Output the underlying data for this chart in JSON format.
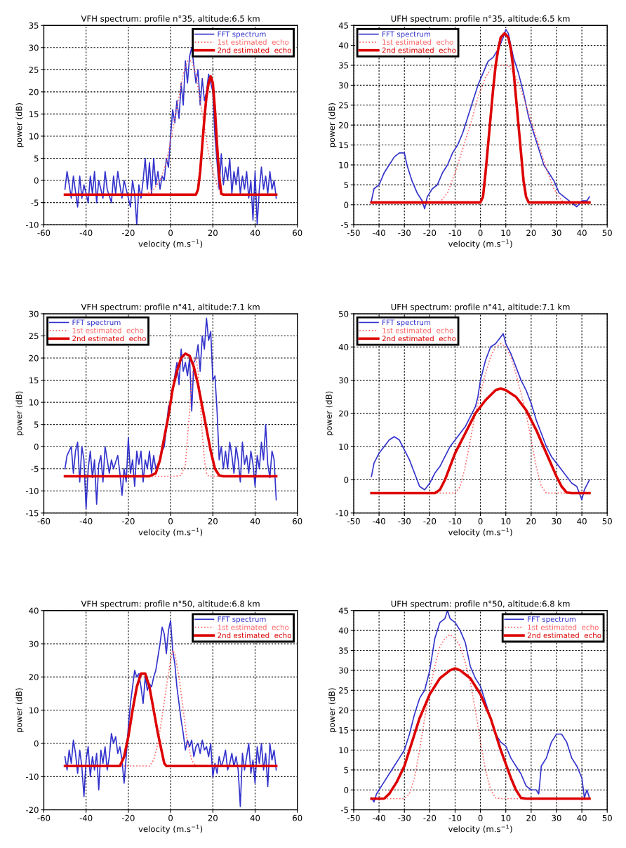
{
  "chart_data": [
    {
      "type": "line",
      "title": "VFH spectrum: profile n°35, altitude:6.5 km",
      "xlabel": "velocity (m.s$^{−1}$)",
      "ylabel": "power (dB)",
      "xlim": [
        -60,
        60
      ],
      "xticks": [
        -60,
        -40,
        -20,
        0,
        20,
        40,
        60
      ],
      "ylim": [
        -10,
        35
      ],
      "yticks": [
        -10,
        -5,
        0,
        5,
        10,
        15,
        20,
        25,
        30,
        35
      ],
      "grid": true,
      "legend": "top right",
      "series": [
        {
          "name": "FFT spectrum",
          "color": "#3333cc",
          "line_style": "solid",
          "x": [
            -50,
            -49,
            -47,
            -46,
            -44,
            -43,
            -42,
            -41,
            -39,
            -38,
            -37,
            -36,
            -35,
            -34,
            -32,
            -31,
            -30,
            -28,
            -27,
            -26,
            -25,
            -23,
            -22,
            -21,
            -19,
            -18,
            -17,
            -16,
            -15,
            -14,
            -13,
            -12,
            -11,
            -10,
            -9,
            -8,
            -7,
            -6,
            -5,
            -4,
            -3,
            -2,
            -1,
            0,
            1,
            2,
            3,
            4,
            5,
            6,
            7,
            8,
            9,
            10,
            11,
            12,
            13,
            14,
            15,
            16,
            17,
            18,
            19,
            20,
            21,
            22,
            23,
            24,
            25,
            26,
            27,
            28,
            29,
            30,
            31,
            32,
            33,
            34,
            35,
            36,
            37,
            38,
            39,
            40,
            41,
            42,
            43,
            44,
            45,
            46,
            47,
            48,
            49,
            50
          ],
          "values": [
            -2,
            2,
            -4,
            1,
            -6,
            1,
            -4,
            -1,
            -5,
            1,
            -3,
            2,
            -5,
            0,
            -4,
            2,
            -2,
            -5,
            1,
            -3,
            2,
            -4,
            0,
            -2,
            -6,
            0,
            -3,
            -10,
            -1,
            -4,
            0,
            5,
            -2,
            4,
            -3,
            5,
            -1,
            2,
            -2,
            1,
            0,
            5,
            3,
            10,
            16,
            13,
            18,
            14,
            22,
            17,
            27,
            22,
            28,
            30,
            26,
            22,
            25,
            17,
            23,
            18,
            20,
            24,
            22,
            20,
            10,
            4,
            -2,
            6,
            -1,
            3,
            0,
            5,
            -3,
            2,
            -1,
            3,
            -3,
            1,
            -2,
            2,
            -4,
            0,
            -9,
            2,
            -10,
            -2,
            3,
            -2,
            1,
            -3,
            2,
            -2,
            0,
            -4
          ]
        },
        {
          "name": "1st estimated  echo",
          "color": "#ff6666",
          "line_style": "dotted",
          "x": [
            -50,
            -12,
            -8,
            -5,
            -2,
            0,
            2,
            4,
            6,
            8,
            10,
            12,
            14,
            16,
            18,
            20,
            22,
            24,
            26,
            50
          ],
          "values": [
            -3.2,
            -3.2,
            -2,
            0,
            4,
            9,
            14,
            19,
            24,
            27,
            27,
            24,
            18,
            12,
            6,
            2,
            -1,
            -3,
            -3.2,
            -3.2
          ]
        },
        {
          "name": "2nd estimated  echo",
          "color": "#dd0000",
          "line_style": "solid",
          "x": [
            -50,
            12,
            13,
            14,
            15,
            16,
            17,
            18,
            19,
            20,
            21,
            22,
            23,
            24,
            25,
            50
          ],
          "values": [
            -3.2,
            -3.2,
            -2,
            2,
            8,
            14,
            19,
            22,
            23.5,
            22,
            16,
            8,
            1,
            -3,
            -3.2,
            -3.2
          ]
        }
      ]
    },
    {
      "type": "line",
      "title": "UFH spectrum: profile n°35, altitude:6.5 km",
      "xlabel": "velocity (m.s$^{−1}$)",
      "ylabel": "power (dB)",
      "xlim": [
        -50,
        50
      ],
      "xticks": [
        -50,
        -40,
        -30,
        -20,
        -10,
        0,
        10,
        20,
        30,
        40,
        50
      ],
      "ylim": [
        -5,
        45
      ],
      "yticks": [
        -5,
        0,
        5,
        10,
        15,
        20,
        25,
        30,
        35,
        40,
        45
      ],
      "grid": true,
      "legend": "top left",
      "series": [
        {
          "name": "FFT spectrum",
          "color": "#3333cc",
          "line_style": "solid",
          "x": [
            -43,
            -42,
            -40,
            -38,
            -36,
            -34,
            -32,
            -30,
            -29,
            -27,
            -25,
            -23,
            -22,
            -21,
            -19,
            -17,
            -15,
            -13,
            -11,
            -9,
            -7,
            -5,
            -3,
            -1,
            1,
            3,
            5,
            7,
            9,
            10,
            11,
            12,
            13,
            15,
            17,
            19,
            21,
            23,
            25,
            27,
            29,
            31,
            33,
            35,
            37,
            38,
            40,
            42,
            43
          ],
          "values": [
            1,
            4,
            5,
            8,
            10,
            12,
            13,
            13,
            10,
            6,
            3,
            1,
            -1,
            2,
            4,
            5,
            8,
            10,
            13,
            15,
            18,
            22,
            26,
            30,
            33,
            36,
            37,
            39,
            42,
            44,
            43,
            40,
            37,
            33,
            28,
            22,
            18,
            14,
            10,
            8,
            6,
            3,
            2,
            1,
            0,
            -0.5,
            1,
            1,
            2
          ]
        },
        {
          "name": "1st estimated  echo",
          "color": "#ff6666",
          "line_style": "dotted",
          "x": [
            -43,
            -16,
            -13,
            -10,
            -7,
            -4,
            -1,
            2,
            5,
            8,
            11,
            14,
            17,
            20,
            23,
            26,
            29,
            32,
            34,
            43
          ],
          "values": [
            0.6,
            0.6,
            3,
            8,
            14,
            20,
            27,
            32,
            35,
            35,
            35,
            32,
            27,
            21,
            15,
            9,
            4,
            1,
            0.6,
            0.6
          ]
        },
        {
          "name": "2nd estimated  echo",
          "color": "#dd0000",
          "line_style": "solid",
          "x": [
            -43,
            0,
            1,
            2,
            3,
            4,
            5,
            6,
            7,
            8,
            9.5,
            11,
            12,
            13,
            14,
            15,
            16,
            17,
            18,
            19,
            43
          ],
          "values": [
            0.6,
            0.6,
            2,
            8,
            15,
            22,
            29,
            35,
            39,
            42,
            43,
            42,
            39,
            34,
            27,
            20,
            13,
            6,
            2,
            0.6,
            0.6
          ]
        }
      ]
    },
    {
      "type": "line",
      "title": "VFH spectrum: profile n°41, altitude:7.1 km",
      "xlabel": "velocity (m.s$^{−1}$)",
      "ylabel": "power (dB)",
      "xlim": [
        -60,
        60
      ],
      "xticks": [
        -60,
        -40,
        -20,
        0,
        20,
        40,
        60
      ],
      "ylim": [
        -15,
        30
      ],
      "yticks": [
        -15,
        -10,
        -5,
        0,
        5,
        10,
        15,
        20,
        25,
        30
      ],
      "grid": true,
      "legend": "top left",
      "series": [
        {
          "name": "FFT spectrum",
          "color": "#3333cc",
          "line_style": "solid",
          "x": [
            -50,
            -49,
            -47,
            -46,
            -45,
            -44,
            -43,
            -42,
            -41,
            -40,
            -39,
            -38,
            -37,
            -36,
            -35,
            -34,
            -33,
            -32,
            -31,
            -29,
            -28,
            -27,
            -25,
            -24,
            -23,
            -22,
            -21,
            -20,
            -19,
            -18,
            -17,
            -16,
            -15,
            -14,
            -13,
            -12,
            -11,
            -10,
            -9,
            -8,
            -7,
            -5,
            -4,
            -3,
            -2,
            -1,
            0,
            1,
            2,
            3,
            4,
            5,
            6,
            7,
            8,
            9,
            10,
            11,
            12,
            13,
            14,
            15,
            16,
            17,
            18,
            19,
            20,
            21,
            22,
            23,
            24,
            25,
            26,
            27,
            28,
            29,
            30,
            31,
            32,
            33,
            34,
            35,
            36,
            37,
            38,
            39,
            40,
            41,
            42,
            43,
            44,
            45,
            46,
            47,
            48,
            49,
            50
          ],
          "values": [
            -5,
            -2,
            0,
            -6,
            -1,
            1,
            -8,
            0,
            -3,
            -14,
            -5,
            -1,
            -7,
            -3,
            -13,
            -4,
            -2,
            -8,
            0,
            -6,
            -3,
            -5,
            -2,
            -6,
            -11,
            -5,
            -8,
            2,
            -6,
            -3,
            -9,
            -1,
            -4,
            -1,
            -8,
            -3,
            -5,
            -1,
            -6,
            -2,
            -5,
            -3,
            -1,
            0,
            4,
            9,
            10,
            13,
            16,
            19,
            14,
            22,
            17,
            19,
            16,
            20,
            8,
            19,
            20,
            23,
            17,
            25,
            22,
            29,
            24,
            26,
            15,
            16,
            8,
            -3,
            0,
            -5,
            -1,
            -5,
            1,
            -2,
            -6,
            0,
            -3,
            -8,
            1,
            -4,
            -2,
            -6,
            -1,
            -4,
            -9,
            -2,
            -5,
            1,
            -3,
            5,
            -4,
            -7,
            -1,
            -3,
            -12
          ]
        },
        {
          "name": "1st estimated  echo",
          "color": "#ff6666",
          "line_style": "dotted",
          "x": [
            -50,
            2,
            5,
            7,
            8,
            9,
            10,
            11,
            12,
            13,
            14,
            15,
            16,
            17,
            18,
            50
          ],
          "values": [
            -6.7,
            -6.7,
            -6.5,
            -4,
            2,
            8,
            15,
            19,
            20,
            17,
            10,
            3,
            -3,
            -6,
            -6.7,
            -6.7
          ]
        },
        {
          "name": "2nd estimated  echo",
          "color": "#dd0000",
          "line_style": "solid",
          "x": [
            -50,
            -10,
            -7,
            -5,
            -3,
            -1,
            1,
            3,
            5,
            7,
            9,
            11,
            13,
            15,
            17,
            19,
            21,
            23,
            25,
            50
          ],
          "values": [
            -6.7,
            -6.7,
            -6,
            -3,
            2,
            7,
            13,
            17,
            20,
            21,
            20.5,
            18,
            14,
            9,
            4,
            -1,
            -5,
            -6.5,
            -6.7,
            -6.7
          ]
        }
      ]
    },
    {
      "type": "line",
      "title": "UFH spectrum: profile n°41, altitude:7.1 km",
      "xlabel": "velocity (m.s$^{−1}$)",
      "ylabel": "power (dB)",
      "xlim": [
        -50,
        50
      ],
      "xticks": [
        -50,
        -40,
        -30,
        -20,
        -10,
        0,
        10,
        20,
        30,
        40,
        50
      ],
      "ylim": [
        -10,
        50
      ],
      "yticks": [
        -10,
        0,
        10,
        20,
        30,
        40,
        50
      ],
      "grid": true,
      "legend": "top left",
      "series": [
        {
          "name": "FFT spectrum",
          "color": "#3333cc",
          "line_style": "solid",
          "x": [
            -43,
            -42,
            -40,
            -38,
            -36,
            -34,
            -32,
            -30,
            -28,
            -26,
            -24,
            -22,
            -20,
            -18,
            -16,
            -14,
            -12,
            -10,
            -8,
            -6,
            -4,
            -2,
            -1,
            0,
            2,
            4,
            6,
            8,
            9,
            10,
            12,
            14,
            16,
            18,
            20,
            22,
            24,
            26,
            28,
            30,
            32,
            34,
            36,
            38,
            40,
            41,
            43
          ],
          "values": [
            1,
            5,
            8,
            10,
            12,
            13,
            12,
            9,
            6,
            2,
            -2,
            -3,
            -1,
            2,
            4,
            7,
            10,
            12,
            14,
            16,
            19,
            22,
            25,
            30,
            36,
            40,
            41,
            43,
            44,
            41,
            38,
            34,
            30,
            27,
            23,
            18,
            14,
            10,
            7,
            5,
            3,
            1,
            -1,
            -2,
            -6,
            -3,
            0
          ]
        },
        {
          "name": "1st estimated  echo",
          "color": "#ff6666",
          "line_style": "dotted",
          "x": [
            -43,
            -10,
            -8,
            -6,
            -4,
            -2,
            0,
            2,
            4,
            6,
            8,
            10,
            12,
            14,
            16,
            18,
            20,
            22,
            24,
            26,
            43
          ],
          "values": [
            -4,
            -4,
            -2,
            4,
            12,
            20,
            26,
            32,
            37,
            40,
            41,
            40,
            37,
            32,
            26,
            20,
            12,
            4,
            -2,
            -4,
            -4
          ]
        },
        {
          "name": "2nd estimated  echo",
          "color": "#dd0000",
          "line_style": "solid",
          "x": [
            -43,
            -18,
            -16,
            -14,
            -12,
            -10,
            -6,
            -2,
            2,
            6,
            8,
            10,
            14,
            18,
            22,
            26,
            30,
            32,
            34,
            36,
            43
          ],
          "values": [
            -4,
            -4,
            -3,
            0,
            4,
            8,
            14,
            20,
            24,
            27,
            27.5,
            27,
            25,
            21,
            15,
            8,
            1,
            -2,
            -3.8,
            -4,
            -4
          ]
        }
      ]
    },
    {
      "type": "line",
      "title": "VFH spectrum: profile n°50, altitude:6.8 km",
      "xlabel": "velocity (m.s$^{−1}$)",
      "ylabel": "power (dB)",
      "xlim": [
        -60,
        60
      ],
      "xticks": [
        -60,
        -40,
        -20,
        0,
        20,
        40,
        60
      ],
      "ylim": [
        -20,
        40
      ],
      "yticks": [
        -20,
        -10,
        0,
        10,
        20,
        30,
        40
      ],
      "grid": true,
      "legend": "top right",
      "series": [
        {
          "name": "FFT spectrum",
          "color": "#3333cc",
          "line_style": "solid",
          "x": [
            -50,
            -49,
            -48,
            -47,
            -46,
            -45,
            -44,
            -43,
            -42,
            -41,
            -40,
            -39,
            -38,
            -37,
            -36,
            -35,
            -34,
            -33,
            -32,
            -31,
            -30,
            -29,
            -28,
            -27,
            -26,
            -25,
            -24,
            -23,
            -22,
            -21,
            -20,
            -19,
            -18,
            -17,
            -16,
            -15,
            -14,
            -13,
            -12,
            -11,
            -10,
            -9,
            -8,
            -7,
            -6,
            -5,
            -4,
            -3,
            -2,
            -1,
            0,
            1,
            2,
            3,
            4,
            5,
            6,
            7,
            8,
            9,
            10,
            11,
            12,
            13,
            14,
            15,
            16,
            17,
            18,
            19,
            20,
            21,
            22,
            23,
            24,
            25,
            26,
            27,
            28,
            29,
            30,
            31,
            32,
            33,
            34,
            35,
            36,
            37,
            38,
            39,
            40,
            41,
            42,
            43,
            44,
            45,
            46,
            47,
            48,
            49,
            50
          ],
          "values": [
            -4,
            -8,
            -2,
            -6,
            1,
            -3,
            -9,
            -2,
            -7,
            -16,
            -5,
            -1,
            -10,
            -4,
            -8,
            -3,
            -14,
            -2,
            -6,
            -1,
            -8,
            -4,
            3,
            0,
            2,
            -3,
            -1,
            -5,
            -12,
            -4,
            5,
            12,
            17,
            22,
            20,
            21,
            17,
            12,
            20,
            16,
            18,
            17,
            20,
            22,
            26,
            30,
            35,
            33,
            27,
            34,
            37,
            28,
            24,
            17,
            12,
            7,
            3,
            -2,
            1,
            -1,
            1,
            -4,
            -1,
            0,
            -3,
            1,
            -2,
            -1,
            -4,
            0,
            -10,
            -6,
            -9,
            -4,
            -7,
            -5,
            -2,
            -8,
            -6,
            -3,
            -7,
            -4,
            -8,
            -19,
            -3,
            -8,
            -4,
            0,
            -9,
            -5,
            -12,
            -1,
            -6,
            0,
            -8,
            -3,
            -13,
            0,
            -5,
            -2,
            -8
          ]
        },
        {
          "name": "1st estimated  echo",
          "color": "#ff6666",
          "line_style": "dotted",
          "x": [
            -50,
            -10,
            -8,
            -6,
            -4,
            -2,
            0,
            1,
            2,
            4,
            6,
            8,
            10,
            12,
            50
          ],
          "values": [
            -6.8,
            -6.8,
            -5,
            0,
            8,
            17,
            25,
            28,
            27,
            20,
            10,
            0,
            -5,
            -6.8,
            -6.8
          ]
        },
        {
          "name": "2nd estimated  echo",
          "color": "#dd0000",
          "line_style": "solid",
          "x": [
            -50,
            -24,
            -22,
            -20,
            -18,
            -16,
            -14,
            -12,
            -10,
            -8,
            -6,
            -4,
            -3,
            -2,
            50
          ],
          "values": [
            -6.8,
            -6.8,
            -4,
            2,
            10,
            17,
            21,
            21,
            17,
            10,
            3,
            -3,
            -6,
            -6.8,
            -6.8
          ]
        }
      ]
    },
    {
      "type": "line",
      "title": "UFH spectrum: profile n°50, altitude:6.8 km",
      "xlabel": "velocity (m.s$^{−1}$)",
      "ylabel": "power (dB)",
      "xlim": [
        -50,
        50
      ],
      "xticks": [
        -50,
        -40,
        -30,
        -20,
        -10,
        0,
        10,
        20,
        30,
        40,
        50
      ],
      "ylim": [
        -5,
        45
      ],
      "yticks": [
        -5,
        0,
        5,
        10,
        15,
        20,
        25,
        30,
        35,
        40,
        45
      ],
      "grid": true,
      "legend": "top right",
      "series": [
        {
          "name": "FFT spectrum",
          "color": "#3333cc",
          "line_style": "solid",
          "x": [
            -43,
            -42,
            -41,
            -40,
            -38,
            -36,
            -34,
            -32,
            -30,
            -28,
            -26,
            -24,
            -22,
            -20,
            -18,
            -16,
            -14,
            -13,
            -12,
            -10,
            -8,
            -6,
            -4,
            -2,
            0,
            2,
            4,
            6,
            8,
            10,
            12,
            14,
            16,
            18,
            20,
            22,
            23,
            24,
            26,
            28,
            30,
            32,
            34,
            36,
            38,
            40,
            41,
            42,
            43
          ],
          "values": [
            -2,
            -3,
            -1,
            0,
            2,
            4,
            6,
            8,
            10,
            14,
            19,
            23,
            25,
            30,
            38,
            42,
            43,
            45,
            43,
            42,
            40,
            37,
            31,
            28,
            26,
            22,
            18,
            14,
            12,
            11,
            8,
            6,
            4,
            1,
            0,
            0,
            -1,
            6,
            8,
            12,
            14,
            14,
            12,
            8,
            6,
            3,
            -2,
            0,
            -2
          ]
        },
        {
          "name": "1st estimated  echo",
          "color": "#ff6666",
          "line_style": "dotted",
          "x": [
            -43,
            -30,
            -28,
            -26,
            -24,
            -22,
            -20,
            -18,
            -16,
            -14,
            -12,
            -10,
            -8,
            -6,
            -4,
            -2,
            0,
            2,
            4,
            6,
            8,
            43
          ],
          "values": [
            -2.2,
            -2.2,
            -1,
            3,
            10,
            18,
            25,
            31,
            36,
            38,
            39,
            38,
            36,
            32,
            27,
            20,
            12,
            5,
            0,
            -2,
            -2.2,
            -2.2
          ]
        },
        {
          "name": "2nd estimated  echo",
          "color": "#dd0000",
          "line_style": "solid",
          "x": [
            -43,
            -38,
            -36,
            -33,
            -30,
            -27,
            -24,
            -20,
            -16,
            -12,
            -10,
            -8,
            -4,
            0,
            4,
            8,
            12,
            14,
            16,
            18,
            43
          ],
          "values": [
            -2.2,
            -2.2,
            -1,
            2,
            6,
            12,
            18,
            24,
            28,
            30,
            30.5,
            30,
            28,
            24,
            18,
            10,
            3,
            0,
            -2,
            -2.2,
            -2.2
          ]
        }
      ]
    }
  ]
}
